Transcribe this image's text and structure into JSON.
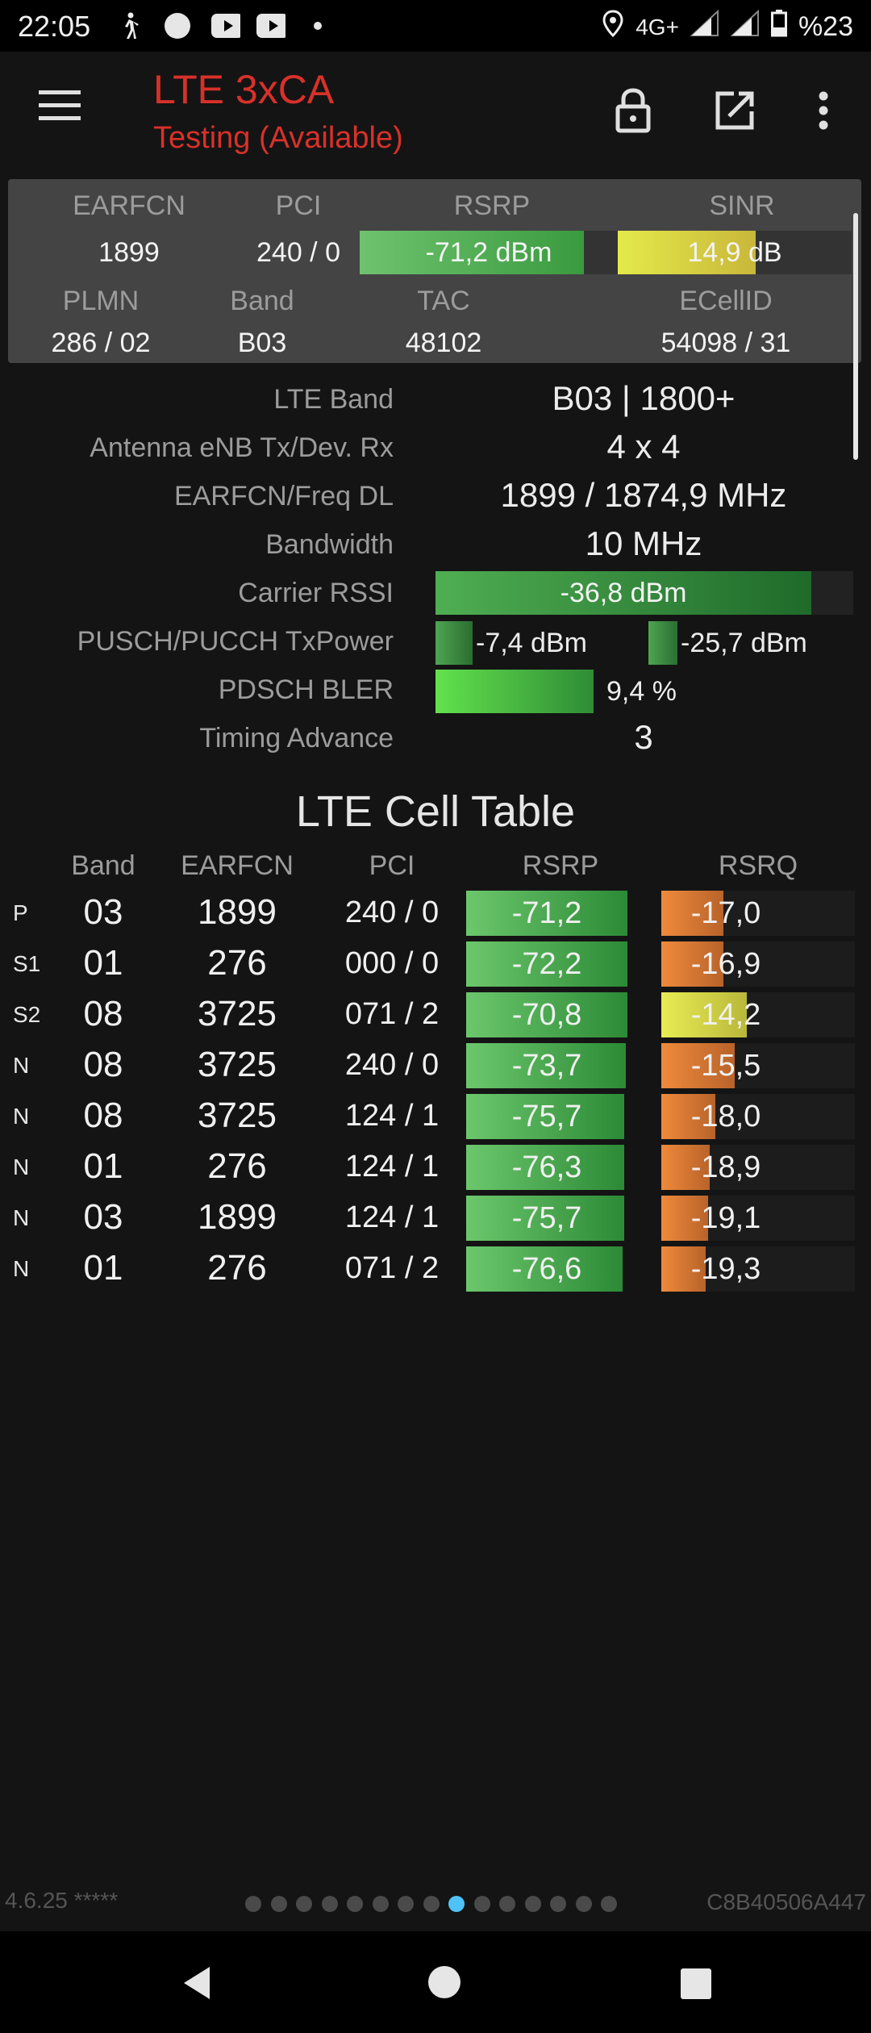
{
  "status_bar": {
    "time": "22:05",
    "network": "4G+",
    "battery": "%23",
    "icons": [
      "walk-icon",
      "circle-icon",
      "youtube-icon",
      "youtube-icon",
      "dot-icon",
      "location-icon",
      "signal-icon",
      "signal-icon",
      "battery-icon"
    ]
  },
  "app_bar": {
    "title": "LTE 3xCA",
    "subtitle": "Testing (Available)",
    "icons": [
      "menu-icon",
      "lock-icon",
      "open-external-icon",
      "more-vert-icon"
    ],
    "accent_color": "#d8312a"
  },
  "summary": {
    "labels": {
      "earfcn": "EARFCN",
      "pci": "PCI",
      "rsrp": "RSRP",
      "sinr": "SINR",
      "plmn": "PLMN",
      "band": "Band",
      "tac": "TAC",
      "ecellid": "ECellID"
    },
    "earfcn": "1899",
    "pci": "240 / 0",
    "rsrp": "-71,2 dBm",
    "rsrp_level": 0.87,
    "sinr": "14,9 dB",
    "sinr_level": 0.59,
    "plmn": "286 / 02",
    "band": "B03",
    "tac": "48102",
    "ecellid": "54098 / 31"
  },
  "details": {
    "lte_band_label": "LTE Band",
    "lte_band": "B03 | 1800+",
    "antenna_label": "Antenna eNB Tx/Dev. Rx",
    "antenna": "4 x 4",
    "earfcn_freq_label": "EARFCN/Freq DL",
    "earfcn_freq": "1899 / 1874,9 MHz",
    "bandwidth_label": "Bandwidth",
    "bandwidth": "10 MHz",
    "rssi_label": "Carrier RSSI",
    "rssi": "-36,8 dBm",
    "rssi_level": 0.9,
    "txpower_label": "PUSCH/PUCCH TxPower",
    "pusch": "-7,4 dBm",
    "pucch": "-25,7 dBm",
    "bler_label": "PDSCH BLER",
    "bler": "9,4 %",
    "ta_label": "Timing Advance",
    "ta": "3"
  },
  "cell_table": {
    "title": "LTE Cell Table",
    "headers": {
      "band": "Band",
      "earfcn": "EARFCN",
      "pci": "PCI",
      "rsrp": "RSRP",
      "rsrq": "RSRQ"
    },
    "rows": [
      {
        "type": "P",
        "band": "03",
        "earfcn": "1899",
        "pci": "240 / 0",
        "rsrp": "-71,2",
        "rsrp_level": 1.0,
        "rsrq": "-17,0",
        "rsrq_level": 0.32,
        "rsrq_color": "orange"
      },
      {
        "type": "S1",
        "band": "01",
        "earfcn": "276",
        "pci": "000 / 0",
        "rsrp": "-72,2",
        "rsrp_level": 1.0,
        "rsrq": "-16,9",
        "rsrq_level": 0.32,
        "rsrq_color": "orange"
      },
      {
        "type": "S2",
        "band": "08",
        "earfcn": "3725",
        "pci": "071 / 2",
        "rsrp": "-70,8",
        "rsrp_level": 1.0,
        "rsrq": "-14,2",
        "rsrq_level": 0.44,
        "rsrq_color": "yellow"
      },
      {
        "type": "N",
        "band": "08",
        "earfcn": "3725",
        "pci": "240 / 0",
        "rsrp": "-73,7",
        "rsrp_level": 0.99,
        "rsrq": "-15,5",
        "rsrq_level": 0.38,
        "rsrq_color": "orange"
      },
      {
        "type": "N",
        "band": "08",
        "earfcn": "3725",
        "pci": "124 / 1",
        "rsrp": "-75,7",
        "rsrp_level": 0.98,
        "rsrq": "-18,0",
        "rsrq_level": 0.28,
        "rsrq_color": "orange"
      },
      {
        "type": "N",
        "band": "01",
        "earfcn": "276",
        "pci": "124 / 1",
        "rsrp": "-76,3",
        "rsrp_level": 0.98,
        "rsrq": "-18,9",
        "rsrq_level": 0.25,
        "rsrq_color": "orange"
      },
      {
        "type": "N",
        "band": "03",
        "earfcn": "1899",
        "pci": "124 / 1",
        "rsrp": "-75,7",
        "rsrp_level": 0.98,
        "rsrq": "-19,1",
        "rsrq_level": 0.24,
        "rsrq_color": "orange"
      },
      {
        "type": "N",
        "band": "01",
        "earfcn": "276",
        "pci": "071 / 2",
        "rsrp": "-76,6",
        "rsrp_level": 0.97,
        "rsrq": "-19,3",
        "rsrq_level": 0.23,
        "rsrq_color": "orange"
      }
    ]
  },
  "footer": {
    "version": "4.6.25 *****",
    "device_id": "C8B40506A447",
    "page_count": 15,
    "active_page": 8,
    "active_dot_color": "#4fc3f7"
  },
  "nav_bar": {
    "icons": [
      "back-icon",
      "home-icon",
      "recents-icon"
    ]
  }
}
